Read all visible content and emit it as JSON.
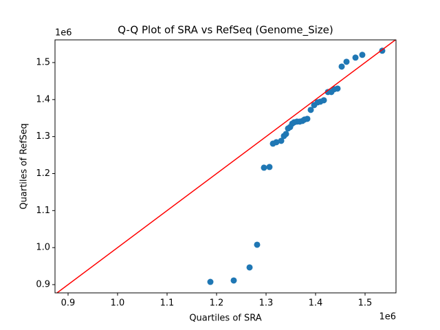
{
  "chart_data": {
    "type": "scatter",
    "title": "Q-Q Plot of SRA vs RefSeq (Genome_Size)",
    "x_label": "Quartiles of SRA",
    "y_label": "Quartiles of RefSeq",
    "x_offset_label": "1e6",
    "y_offset_label": "1e6",
    "color": "#1f77b4",
    "identity_line_color": "#ff0000",
    "x": [
      1187500,
      1234700,
      1266700,
      1281900,
      1295800,
      1306900,
      1313900,
      1320800,
      1330600,
      1336100,
      1340300,
      1344400,
      1348600,
      1352800,
      1356900,
      1362500,
      1368100,
      1373600,
      1377800,
      1383300,
      1390300,
      1397200,
      1404200,
      1409700,
      1416700,
      1425000,
      1431900,
      1437500,
      1444400,
      1452800,
      1462500,
      1480600,
      1494400,
      1534700
    ],
    "values": [
      907400,
      911200,
      946500,
      1007800,
      1216000,
      1217800,
      1281000,
      1284800,
      1288500,
      1301500,
      1307100,
      1321900,
      1325700,
      1334900,
      1338700,
      1340500,
      1340500,
      1342400,
      1346100,
      1348000,
      1372100,
      1385100,
      1392600,
      1394400,
      1398100,
      1420400,
      1420400,
      1427900,
      1429700,
      1489200,
      1502200,
      1513400,
      1520800,
      1532000
    ],
    "xlim": [
      873600,
      1562500
    ],
    "ylim": [
      877700,
      1561300
    ],
    "xticks": [
      {
        "value": 900000,
        "label": "0.9"
      },
      {
        "value": 1000000,
        "label": "1.0"
      },
      {
        "value": 1100000,
        "label": "1.1"
      },
      {
        "value": 1200000,
        "label": "1.2"
      },
      {
        "value": 1300000,
        "label": "1.3"
      },
      {
        "value": 1400000,
        "label": "1.4"
      },
      {
        "value": 1500000,
        "label": "1.5"
      }
    ],
    "yticks": [
      {
        "value": 900000,
        "label": "0.9"
      },
      {
        "value": 1000000,
        "label": "1.0"
      },
      {
        "value": 1100000,
        "label": "1.1"
      },
      {
        "value": 1200000,
        "label": "1.2"
      },
      {
        "value": 1300000,
        "label": "1.3"
      },
      {
        "value": 1400000,
        "label": "1.4"
      },
      {
        "value": 1500000,
        "label": "1.5"
      }
    ]
  }
}
